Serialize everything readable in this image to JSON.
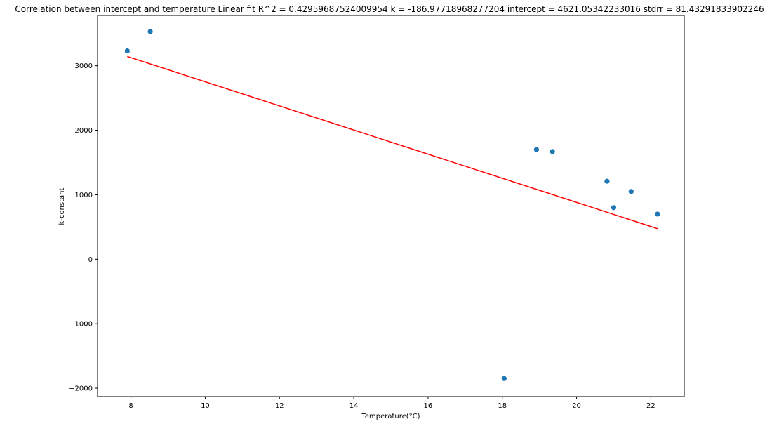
{
  "chart_data": {
    "type": "scatter",
    "title": "Correlation between intercept and temperature  Linear fit    R^2 = 0.42959687524009954  k = -186.97718968277204  intercept = 4621.05342233016  stdrr = 81.43291833902246",
    "xlabel": "Temperature(°C)",
    "ylabel": "k-constant",
    "xlim": [
      7.1,
      22.9
    ],
    "ylim": [
      -2130,
      3780
    ],
    "xticks": [
      8,
      10,
      12,
      14,
      16,
      18,
      20,
      22
    ],
    "xtick_labels": [
      "8",
      "10",
      "12",
      "14",
      "16",
      "18",
      "20",
      "22"
    ],
    "yticks": [
      -2000,
      -1000,
      0,
      1000,
      2000,
      3000
    ],
    "ytick_labels": [
      "−2000",
      "−1000",
      "0",
      "1000",
      "2000",
      "3000"
    ],
    "grid": false,
    "series": [
      {
        "kind": "scatter",
        "color": "#1f77b4",
        "points": [
          {
            "x": 7.9,
            "y": 3230
          },
          {
            "x": 8.52,
            "y": 3530
          },
          {
            "x": 18.05,
            "y": -1850
          },
          {
            "x": 18.92,
            "y": 1700
          },
          {
            "x": 19.35,
            "y": 1670
          },
          {
            "x": 20.82,
            "y": 1210
          },
          {
            "x": 21.0,
            "y": 800
          },
          {
            "x": 21.47,
            "y": 1050
          },
          {
            "x": 22.18,
            "y": 700
          }
        ]
      },
      {
        "kind": "line",
        "color": "#ff0000",
        "x": [
          7.9,
          22.18
        ],
        "y": [
          3144,
          474
        ]
      }
    ]
  }
}
